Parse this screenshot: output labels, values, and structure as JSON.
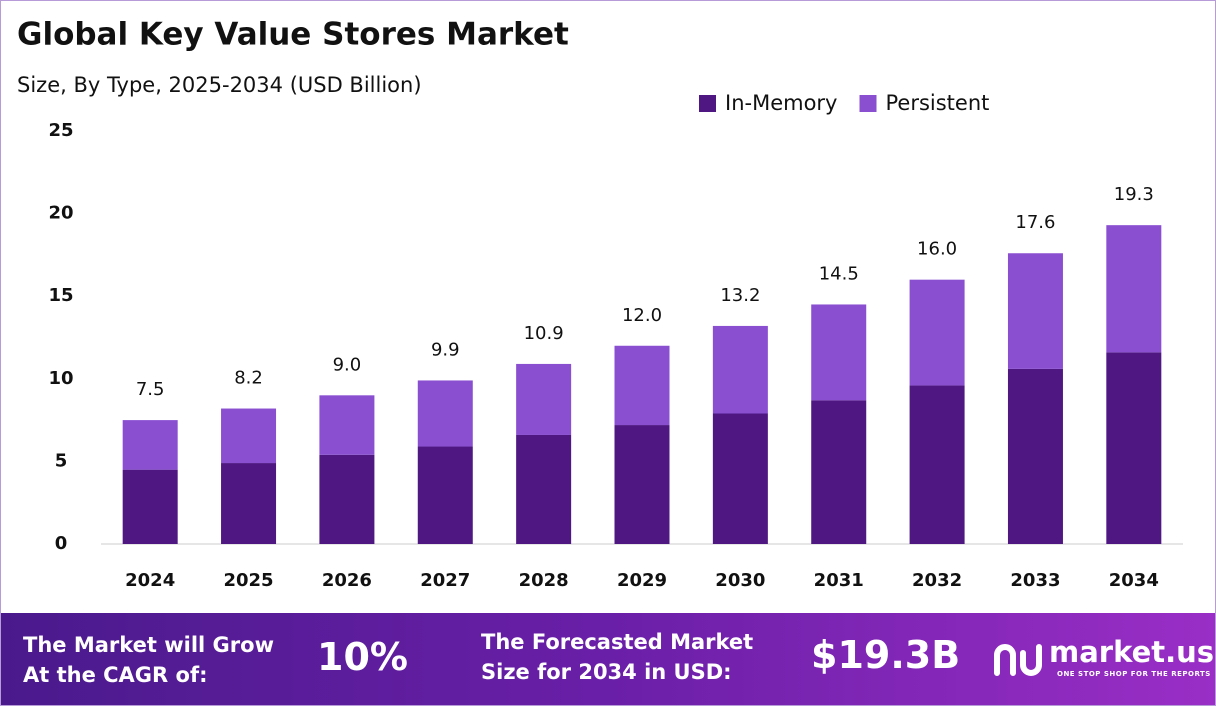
{
  "chart_data": {
    "type": "stacked_bar",
    "title": "Global Key Value Stores Market",
    "subtitle": "Size, By Type, 2025-2034 (USD Billion)",
    "categories": [
      "2024",
      "2025",
      "2026",
      "2027",
      "2028",
      "2029",
      "2030",
      "2031",
      "2032",
      "2033",
      "2034"
    ],
    "series": [
      {
        "name": "In-Memory",
        "color": "#4e1782",
        "values": [
          4.5,
          4.9,
          5.4,
          5.9,
          6.6,
          7.2,
          7.9,
          8.7,
          9.6,
          10.6,
          11.6
        ]
      },
      {
        "name": "Persistent",
        "color": "#8a4fd1",
        "values": [
          3.0,
          3.3,
          3.6,
          4.0,
          4.3,
          4.8,
          5.3,
          5.8,
          6.4,
          7.0,
          7.7
        ]
      }
    ],
    "totals": {
      "values": [
        7.5,
        8.2,
        9,
        9.9,
        10.9,
        12,
        13.2,
        14.5,
        16,
        17.6,
        19.3
      ],
      "value_labels": [
        "7.5",
        "8.2",
        "9.0",
        "9.9",
        "10.9",
        "12.0",
        "13.2",
        "14.5",
        "16.0",
        "17.6",
        "19.3"
      ]
    },
    "ylim": [
      0,
      25
    ],
    "yticks": [
      0,
      5,
      10,
      15,
      20,
      25
    ],
    "grid": false,
    "legend": "top-right"
  },
  "footer": {
    "cagr_text": [
      "The Market will Grow",
      "At the CAGR of:"
    ],
    "cagr_value": "10%",
    "forecast_text": [
      "The Forecasted Market",
      "Size for 2034 in USD:"
    ],
    "forecast_value": "$19.3B",
    "brand": "market.us",
    "tagline": "ONE STOP SHOP FOR THE REPORTS"
  }
}
